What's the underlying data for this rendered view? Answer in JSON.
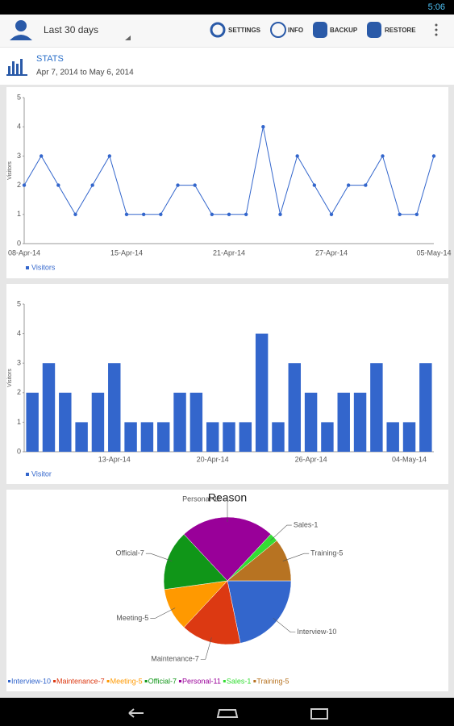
{
  "status_bar": {
    "time": "5:06"
  },
  "toolbar": {
    "period": "Last 30 days",
    "actions": [
      "SETTINGS",
      "INFO",
      "BACKUP",
      "RESTORE"
    ]
  },
  "header": {
    "title": "STATS",
    "subtitle": "Apr 7, 2014 to May 6, 2014"
  },
  "chart_data": [
    {
      "type": "line",
      "ylabel": "Visitors",
      "categories": [
        "08-Apr-14",
        null,
        null,
        null,
        null,
        null,
        "15-Apr-14",
        null,
        null,
        null,
        null,
        null,
        "21-Apr-14",
        null,
        null,
        null,
        null,
        null,
        "27-Apr-14",
        null,
        null,
        null,
        null,
        null,
        "05-May-14"
      ],
      "series": [
        {
          "name": "Visitors",
          "color": "#3366cc",
          "values": [
            2,
            3,
            2,
            1,
            2,
            3,
            1,
            1,
            1,
            2,
            2,
            1,
            1,
            1,
            4,
            1,
            3,
            2,
            1,
            2,
            2,
            3,
            1,
            1,
            3
          ]
        }
      ],
      "ylim": [
        0,
        5
      ],
      "yticks": [
        0,
        1,
        2,
        3,
        4,
        5
      ]
    },
    {
      "type": "bar",
      "ylabel": "Visitors",
      "categories": [
        null,
        null,
        null,
        null,
        null,
        "13-Apr-14",
        null,
        null,
        null,
        null,
        null,
        "20-Apr-14",
        null,
        null,
        null,
        null,
        null,
        "26-Apr-14",
        null,
        null,
        null,
        null,
        null,
        "04-May-14",
        null
      ],
      "series": [
        {
          "name": "Visitor",
          "color": "#3366cc",
          "values": [
            2,
            3,
            2,
            1,
            2,
            3,
            1,
            1,
            1,
            2,
            2,
            1,
            1,
            1,
            4,
            1,
            3,
            2,
            1,
            2,
            2,
            3,
            1,
            1,
            3
          ]
        }
      ],
      "ylim": [
        0,
        5
      ],
      "yticks": [
        0,
        1,
        2,
        3,
        4,
        5
      ]
    },
    {
      "type": "pie",
      "title": "Reason",
      "values": [
        10,
        7,
        5,
        7,
        11,
        1,
        5
      ],
      "value_labels": [
        "Interview-10",
        "Maintenance-7",
        "Meeting-5",
        "Official-7",
        "Personal-11",
        "Sales-1",
        "Training-5"
      ],
      "colors": [
        "#3366cc",
        "#dc3912",
        "#ff9900",
        "#109618",
        "#990099",
        "#33dd33",
        "#b77322"
      ]
    }
  ]
}
